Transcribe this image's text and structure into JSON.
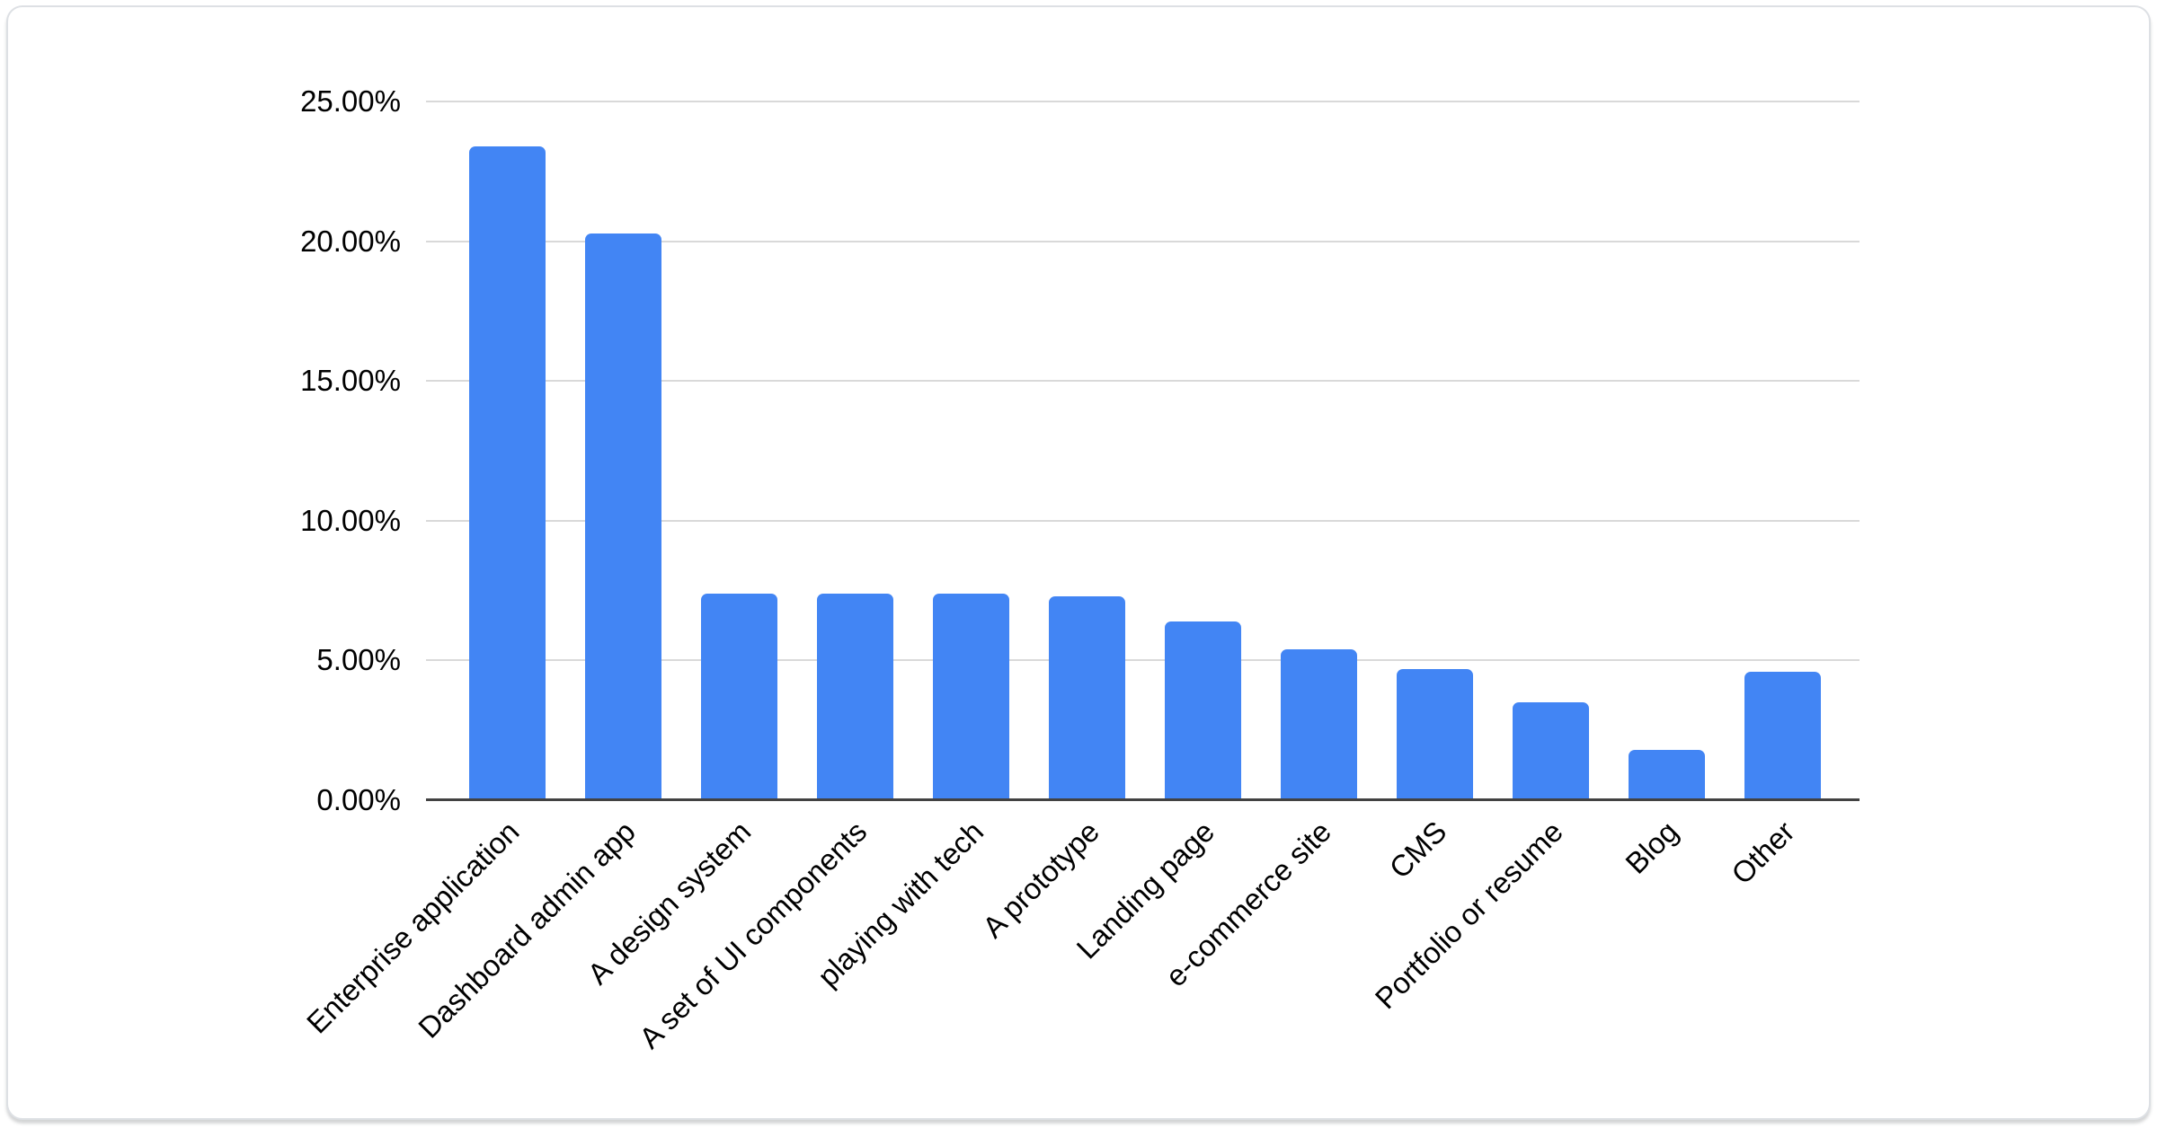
{
  "card": {
    "background": "#ffffff",
    "border_color": "#dde0e4"
  },
  "chart_data": {
    "type": "bar",
    "title": "",
    "xlabel": "",
    "ylabel": "",
    "categories": [
      "Enterprise application",
      "Dashboard admin app",
      "A design system",
      "A set of UI components",
      "playing with tech",
      "A prototype",
      "Landing page",
      "e-commerce site",
      "CMS",
      "Portfolio or resume",
      "Blog",
      "Other"
    ],
    "values": [
      23.4,
      20.3,
      7.4,
      7.4,
      7.4,
      7.3,
      6.4,
      5.4,
      4.7,
      3.5,
      1.8,
      4.6
    ],
    "value_unit": "%",
    "ylim": [
      0,
      25
    ],
    "y_tick_labels": [
      "0.00%",
      "5.00%",
      "10.00%",
      "15.00%",
      "20.00%",
      "25.00%"
    ],
    "grid": true,
    "legend": "none",
    "x_label_rotation_deg": -45,
    "bar_color": "#4285f4",
    "gridline_color": "#d9d9d9",
    "axis_line_color": "#424242",
    "text_color": "#000000"
  }
}
